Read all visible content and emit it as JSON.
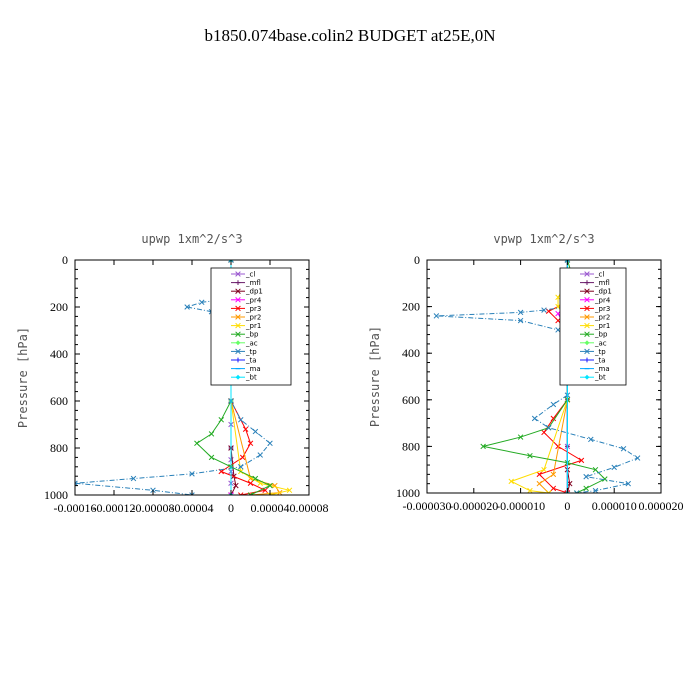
{
  "figure": {
    "title": "b1850.074base.colin2  BUDGET at25E,0N"
  },
  "chart_data": [
    {
      "type": "line",
      "title": "upwp   1xm^2/s^3",
      "xlabel": "",
      "ylabel": "Pressure [hPa]",
      "xlim": [
        -0.00016,
        8e-05
      ],
      "ylim": [
        1000,
        0
      ],
      "x_tick_labels": [
        "-0.00016",
        "-0.00012",
        "-0.00008",
        "-0.00004",
        "0",
        "0.00004",
        "0.00008"
      ],
      "x_tick_values": [
        -0.00016,
        -0.00012,
        -8e-05,
        -4e-05,
        0,
        4e-05,
        8e-05
      ],
      "y_tick_labels": [
        "0",
        "200",
        "400",
        "600",
        "800",
        "1000"
      ],
      "y_tick_values": [
        0,
        200,
        400,
        600,
        800,
        1000
      ],
      "legend_position": "top-right",
      "series": [
        {
          "name": "_cl",
          "color": "#9b59d0",
          "marker": "x",
          "points": [
            [
              0,
              0
            ],
            [
              0,
              200
            ],
            [
              0,
              400
            ],
            [
              0,
              600
            ],
            [
              0,
              700
            ],
            [
              0,
              800
            ],
            [
              0,
              850
            ],
            [
              0,
              900
            ],
            [
              0,
              950
            ],
            [
              0,
              1000
            ]
          ]
        },
        {
          "name": "_mfl",
          "color": "#6a1b6a",
          "marker": "+",
          "points": [
            [
              0,
              0
            ],
            [
              0,
              200
            ],
            [
              0,
              400
            ],
            [
              0,
              600
            ],
            [
              0,
              800
            ],
            [
              0,
              1000
            ]
          ]
        },
        {
          "name": "_dp1",
          "color": "#800020",
          "marker": "x",
          "points": [
            [
              0,
              0
            ],
            [
              0,
              200
            ],
            [
              0,
              400
            ],
            [
              0,
              600
            ],
            [
              0,
              800
            ],
            [
              3e-06,
              920
            ],
            [
              5e-06,
              960
            ],
            [
              0,
              1000
            ]
          ]
        },
        {
          "name": "_pr4",
          "color": "#ff00ff",
          "marker": "x",
          "points": [
            [
              0,
              100
            ],
            [
              4e-06,
              150
            ],
            [
              2e-06,
              200
            ],
            [
              0,
              300
            ],
            [
              0,
              600
            ],
            [
              0,
              1000
            ]
          ]
        },
        {
          "name": "_pr3",
          "color": "#ff0000",
          "marker": "x",
          "points": [
            [
              0,
              100
            ],
            [
              1e-05,
              150
            ],
            [
              1.5e-05,
              190
            ],
            [
              6e-06,
              240
            ],
            [
              0,
              300
            ],
            [
              0,
              600
            ],
            [
              1.5e-05,
              720
            ],
            [
              2e-05,
              780
            ],
            [
              1.2e-05,
              840
            ],
            [
              -1e-05,
              900
            ],
            [
              2e-05,
              950
            ],
            [
              3.5e-05,
              980
            ],
            [
              1e-05,
              1000
            ]
          ]
        },
        {
          "name": "_pr2",
          "color": "#ff9900",
          "marker": "x",
          "points": [
            [
              0,
              100
            ],
            [
              8e-06,
              160
            ],
            [
              1.2e-05,
              200
            ],
            [
              0,
              260
            ],
            [
              0,
              600
            ],
            [
              2e-05,
              930
            ],
            [
              4.5e-05,
              960
            ],
            [
              5e-05,
              990
            ],
            [
              2e-05,
              1000
            ]
          ]
        },
        {
          "name": "_pr1",
          "color": "#ffdd00",
          "marker": "x",
          "points": [
            [
              0,
              100
            ],
            [
              -6e-06,
              170
            ],
            [
              -4e-06,
              220
            ],
            [
              0,
              280
            ],
            [
              0,
              600
            ],
            [
              1e-05,
              900
            ],
            [
              3e-05,
              950
            ],
            [
              6e-05,
              980
            ],
            [
              4e-05,
              1000
            ]
          ]
        },
        {
          "name": "_bp",
          "color": "#22aa22",
          "marker": "x",
          "points": [
            [
              0,
              0
            ],
            [
              0,
              600
            ],
            [
              -1e-05,
              680
            ],
            [
              -2e-05,
              740
            ],
            [
              -3.5e-05,
              780
            ],
            [
              -2e-05,
              840
            ],
            [
              0,
              880
            ],
            [
              2.5e-05,
              930
            ],
            [
              4e-05,
              960
            ],
            [
              2e-05,
              1000
            ]
          ]
        },
        {
          "name": "_ac",
          "color": "#66ff66",
          "marker": "diamond",
          "points": [
            [
              0,
              0
            ],
            [
              0,
              600
            ],
            [
              0,
              1000
            ]
          ]
        },
        {
          "name": "_tp",
          "color": "#2980b9",
          "marker": "x",
          "points": [
            [
              0,
              0
            ],
            [
              0,
              140
            ],
            [
              -1e-05,
              170
            ],
            [
              -3e-05,
              180
            ],
            [
              -4.5e-05,
              200
            ],
            [
              -2e-05,
              220
            ],
            [
              0,
              260
            ],
            [
              0,
              600
            ],
            [
              1e-05,
              680
            ],
            [
              2.5e-05,
              730
            ],
            [
              4e-05,
              780
            ],
            [
              3e-05,
              830
            ],
            [
              1e-05,
              880
            ],
            [
              -4e-05,
              910
            ],
            [
              -0.0001,
              930
            ],
            [
              -0.00016,
              950
            ],
            [
              -8e-05,
              980
            ],
            [
              -4e-05,
              1000
            ]
          ]
        },
        {
          "name": "_ta",
          "color": "#1a1aff",
          "marker": "+",
          "points": [
            [
              0,
              0
            ],
            [
              0,
              1000
            ]
          ]
        },
        {
          "name": "_ma",
          "color": "#00aaff",
          "marker": "dash",
          "points": [
            [
              0,
              0
            ],
            [
              0,
              1000
            ]
          ]
        },
        {
          "name": "_bt",
          "color": "#00e5ff",
          "marker": "diamond",
          "points": [
            [
              0,
              0
            ],
            [
              0,
              1000
            ]
          ]
        }
      ]
    },
    {
      "type": "line",
      "title": "vpwp   1xm^2/s^3",
      "xlabel": "",
      "ylabel": "Pressure [hPa]",
      "xlim": [
        -3e-05,
        2e-05
      ],
      "ylim": [
        1000,
        0
      ],
      "x_tick_labels": [
        "-0.000030",
        "-0.000020",
        "-0.000010",
        "0",
        "0.000010",
        "0.000020"
      ],
      "x_tick_values": [
        -3e-05,
        -2e-05,
        -1e-05,
        0,
        1e-05,
        2e-05
      ],
      "y_tick_labels": [
        "0",
        "200",
        "400",
        "600",
        "800",
        "1000"
      ],
      "y_tick_values": [
        0,
        200,
        400,
        600,
        800,
        1000
      ],
      "legend_position": "top-right",
      "series": [
        {
          "name": "_cl",
          "color": "#9b59d0",
          "marker": "x",
          "points": [
            [
              0,
              0
            ],
            [
              0,
              200
            ],
            [
              0,
              400
            ],
            [
              0,
              600
            ],
            [
              0,
              800
            ],
            [
              0,
              1000
            ]
          ]
        },
        {
          "name": "_mfl",
          "color": "#6a1b6a",
          "marker": "+",
          "points": [
            [
              0,
              0
            ],
            [
              0,
              200
            ],
            [
              0,
              400
            ],
            [
              0,
              600
            ],
            [
              0,
              800
            ],
            [
              0,
              1000
            ]
          ]
        },
        {
          "name": "_dp1",
          "color": "#800020",
          "marker": "x",
          "points": [
            [
              0,
              0
            ],
            [
              0,
              600
            ],
            [
              0,
              900
            ],
            [
              5e-07,
              960
            ],
            [
              0,
              1000
            ]
          ]
        },
        {
          "name": "_pr4",
          "color": "#ff00ff",
          "marker": "x",
          "points": [
            [
              0,
              100
            ],
            [
              2e-06,
              170
            ],
            [
              -2e-06,
              230
            ],
            [
              0,
              300
            ],
            [
              0,
              1000
            ]
          ]
        },
        {
          "name": "_pr3",
          "color": "#ff0000",
          "marker": "x",
          "points": [
            [
              0,
              100
            ],
            [
              2e-06,
              160
            ],
            [
              -4e-06,
              220
            ],
            [
              -2e-06,
              260
            ],
            [
              0,
              300
            ],
            [
              0,
              600
            ],
            [
              -3e-06,
              680
            ],
            [
              -5e-06,
              740
            ],
            [
              -2e-06,
              800
            ],
            [
              3e-06,
              860
            ],
            [
              -6e-06,
              920
            ],
            [
              -3e-06,
              980
            ],
            [
              0,
              1000
            ]
          ]
        },
        {
          "name": "_pr2",
          "color": "#ff9900",
          "marker": "x",
          "points": [
            [
              0,
              100
            ],
            [
              3e-06,
              180
            ],
            [
              4e-06,
              220
            ],
            [
              0,
              280
            ],
            [
              0,
              600
            ],
            [
              -3e-06,
              920
            ],
            [
              -6e-06,
              960
            ],
            [
              -4e-06,
              1000
            ]
          ]
        },
        {
          "name": "_pr1",
          "color": "#ffdd00",
          "marker": "x",
          "points": [
            [
              0,
              100
            ],
            [
              -2e-06,
              160
            ],
            [
              -2e-06,
              200
            ],
            [
              0,
              260
            ],
            [
              0,
              600
            ],
            [
              -5e-06,
              900
            ],
            [
              -1.2e-05,
              950
            ],
            [
              -8e-06,
              990
            ],
            [
              -4e-06,
              1000
            ]
          ]
        },
        {
          "name": "_bp",
          "color": "#22aa22",
          "marker": "x",
          "points": [
            [
              0,
              0
            ],
            [
              2e-06,
              130
            ],
            [
              3e-06,
              180
            ],
            [
              0,
              240
            ],
            [
              0,
              600
            ],
            [
              -4e-06,
              720
            ],
            [
              -1e-05,
              760
            ],
            [
              -1.8e-05,
              800
            ],
            [
              -8e-06,
              840
            ],
            [
              0,
              870
            ],
            [
              6e-06,
              900
            ],
            [
              8e-06,
              940
            ],
            [
              4e-06,
              980
            ],
            [
              2e-06,
              1000
            ]
          ]
        },
        {
          "name": "_ac",
          "color": "#66ff66",
          "marker": "diamond",
          "points": [
            [
              0,
              0
            ],
            [
              0,
              1000
            ]
          ]
        },
        {
          "name": "_tp",
          "color": "#2980b9",
          "marker": "x",
          "points": [
            [
              0,
              0
            ],
            [
              0,
              200
            ],
            [
              -5e-06,
              215
            ],
            [
              -1e-05,
              225
            ],
            [
              -2.8e-05,
              240
            ],
            [
              -1e-05,
              260
            ],
            [
              -2e-06,
              300
            ],
            [
              0,
              340
            ],
            [
              0,
              580
            ],
            [
              -3e-06,
              620
            ],
            [
              -7e-06,
              680
            ],
            [
              -4e-06,
              720
            ],
            [
              5e-06,
              770
            ],
            [
              1.2e-05,
              810
            ],
            [
              1.5e-05,
              850
            ],
            [
              1e-05,
              890
            ],
            [
              4e-06,
              930
            ],
            [
              1.3e-05,
              960
            ],
            [
              6e-06,
              990
            ],
            [
              2e-06,
              1000
            ]
          ]
        },
        {
          "name": "_ta",
          "color": "#1a1aff",
          "marker": "+",
          "points": [
            [
              0,
              0
            ],
            [
              0,
              1000
            ]
          ]
        },
        {
          "name": "_ma",
          "color": "#00aaff",
          "marker": "dash",
          "points": [
            [
              0,
              0
            ],
            [
              0,
              1000
            ]
          ]
        },
        {
          "name": "_bt",
          "color": "#00e5ff",
          "marker": "diamond",
          "points": [
            [
              0,
              0
            ],
            [
              0,
              1000
            ]
          ]
        }
      ]
    }
  ]
}
